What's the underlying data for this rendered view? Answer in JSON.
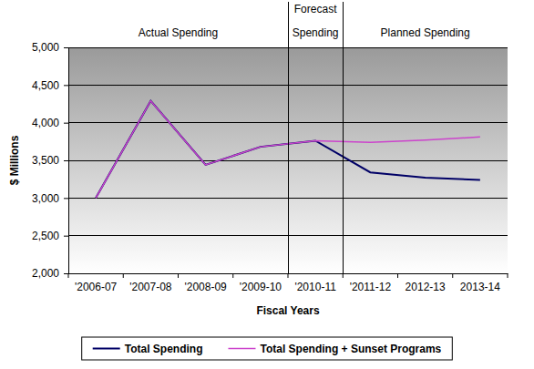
{
  "chart_data": {
    "type": "line",
    "x_label": "Fiscal Years",
    "y_label": "$ Millions",
    "annotations": [
      [
        "Actual Spending"
      ],
      [
        "Forecast",
        "Spending"
      ],
      [
        "Planned Spending"
      ]
    ],
    "categories": [
      "'2006-07",
      "'2007-08",
      "'2008-09",
      "'2009-10",
      "'2010-11",
      "'2011-12",
      "2012-13",
      "2013-14"
    ],
    "series": [
      {
        "name": "Total Spending",
        "color": "#000066",
        "values": [
          3000,
          4290,
          3440,
          3680,
          3760,
          3340,
          3270,
          3240
        ]
      },
      {
        "name": "Total Spending + Sunset Programs",
        "color": "#cc44cc",
        "values": [
          3000,
          4290,
          3440,
          3680,
          3760,
          3740,
          3770,
          3810
        ]
      }
    ],
    "ylim": [
      2000,
      5000
    ],
    "yticks": [
      {
        "value": 2000,
        "label": "2,000"
      },
      {
        "value": 2500,
        "label": "2,500"
      },
      {
        "value": 3000,
        "label": "3,000"
      },
      {
        "value": 3500,
        "label": "3,500"
      },
      {
        "value": 4000,
        "label": "4,000"
      },
      {
        "value": 4500,
        "label": "4,500"
      },
      {
        "value": 5000,
        "label": "5,000"
      }
    ],
    "grid": true,
    "legend": "bottom"
  }
}
